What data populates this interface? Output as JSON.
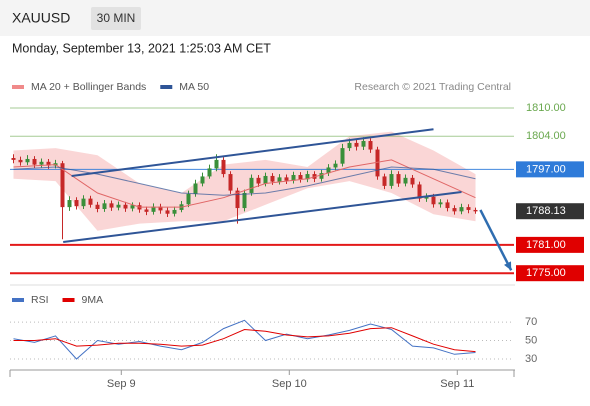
{
  "header": {
    "symbol": "XAUUSD",
    "timeframe": "30 MIN",
    "datetime": "Monday, September 13, 2021 1:25:03 AM CET"
  },
  "chart_data": [
    {
      "type": "candlestick",
      "legend": [
        {
          "name": "MA 20 + Bollinger Bands",
          "color": "#f08a8a"
        },
        {
          "name": "MA 50",
          "color": "#2f5597"
        }
      ],
      "credit": "Research © 2021 Trading Central",
      "ylim": [
        1772.5,
        1812.75
      ],
      "xlim": [
        -0.5,
        71.5
      ],
      "up_color": "#3a8f3a",
      "down_color": "#c62828",
      "candles": [
        [
          1799.4,
          1800.2,
          1798.3,
          1799.0
        ],
        [
          1799.0,
          1799.7,
          1797.8,
          1798.5
        ],
        [
          1798.5,
          1800.0,
          1797.9,
          1799.2
        ],
        [
          1799.2,
          1799.8,
          1797.3,
          1798.0
        ],
        [
          1798.0,
          1799.3,
          1797.4,
          1798.6
        ],
        [
          1798.6,
          1799.2,
          1797.1,
          1797.8
        ],
        [
          1797.8,
          1799.0,
          1797.2,
          1798.3
        ],
        [
          1798.3,
          1798.8,
          1782.2,
          1789.0
        ],
        [
          1789.0,
          1791.3,
          1788.2,
          1790.5
        ],
        [
          1790.5,
          1791.1,
          1788.5,
          1789.2
        ],
        [
          1789.2,
          1791.5,
          1788.6,
          1790.8
        ],
        [
          1790.8,
          1791.4,
          1788.9,
          1789.5
        ],
        [
          1789.5,
          1790.1,
          1787.9,
          1788.6
        ],
        [
          1788.6,
          1790.5,
          1788.0,
          1789.8
        ],
        [
          1789.8,
          1790.4,
          1788.2,
          1788.9
        ],
        [
          1788.9,
          1790.2,
          1788.3,
          1789.5
        ],
        [
          1789.5,
          1790.1,
          1788.0,
          1788.7
        ],
        [
          1788.7,
          1790.0,
          1788.1,
          1789.4
        ],
        [
          1789.4,
          1790.0,
          1787.8,
          1788.5
        ],
        [
          1788.5,
          1789.1,
          1787.3,
          1788.0
        ],
        [
          1788.0,
          1789.8,
          1787.4,
          1789.1
        ],
        [
          1789.1,
          1789.7,
          1787.6,
          1788.3
        ],
        [
          1788.3,
          1788.9,
          1786.9,
          1787.6
        ],
        [
          1787.6,
          1789.1,
          1787.0,
          1788.4
        ],
        [
          1788.4,
          1790.3,
          1787.9,
          1789.6
        ],
        [
          1789.6,
          1792.5,
          1789.0,
          1791.8
        ],
        [
          1791.8,
          1794.8,
          1791.2,
          1794.0
        ],
        [
          1794.0,
          1796.3,
          1793.4,
          1795.5
        ],
        [
          1795.5,
          1798.0,
          1795.0,
          1797.2
        ],
        [
          1797.2,
          1800.2,
          1796.6,
          1799.0
        ],
        [
          1799.0,
          1799.6,
          1795.3,
          1796.0
        ],
        [
          1796.0,
          1796.6,
          1791.8,
          1792.5
        ],
        [
          1792.5,
          1793.1,
          1785.5,
          1788.8
        ],
        [
          1788.8,
          1792.7,
          1788.1,
          1792.0
        ],
        [
          1792.0,
          1795.9,
          1791.4,
          1795.2
        ],
        [
          1795.2,
          1795.8,
          1793.3,
          1794.0
        ],
        [
          1794.0,
          1796.3,
          1793.4,
          1795.6
        ],
        [
          1795.6,
          1796.2,
          1793.7,
          1794.4
        ],
        [
          1794.4,
          1796.0,
          1793.8,
          1795.3
        ],
        [
          1795.3,
          1795.9,
          1793.9,
          1794.6
        ],
        [
          1794.6,
          1796.5,
          1794.0,
          1795.8
        ],
        [
          1795.8,
          1796.4,
          1794.2,
          1794.9
        ],
        [
          1794.9,
          1796.7,
          1794.3,
          1796.0
        ],
        [
          1796.0,
          1796.6,
          1794.3,
          1795.0
        ],
        [
          1795.0,
          1796.9,
          1794.4,
          1796.2
        ],
        [
          1796.2,
          1798.1,
          1795.6,
          1797.4
        ],
        [
          1797.4,
          1798.9,
          1796.8,
          1798.2
        ],
        [
          1798.2,
          1802.4,
          1797.6,
          1801.5
        ],
        [
          1801.5,
          1803.5,
          1800.9,
          1802.6
        ],
        [
          1802.6,
          1803.3,
          1801.0,
          1801.8
        ],
        [
          1801.8,
          1803.8,
          1801.1,
          1803.0
        ],
        [
          1803.0,
          1803.6,
          1800.5,
          1801.2
        ],
        [
          1801.2,
          1801.8,
          1794.8,
          1795.5
        ],
        [
          1795.5,
          1796.1,
          1792.8,
          1793.5
        ],
        [
          1793.5,
          1796.8,
          1792.9,
          1796.0
        ],
        [
          1796.0,
          1796.6,
          1793.3,
          1794.0
        ],
        [
          1794.0,
          1795.9,
          1793.4,
          1795.2
        ],
        [
          1795.2,
          1795.8,
          1793.1,
          1793.8
        ],
        [
          1793.8,
          1794.4,
          1790.1,
          1790.8
        ],
        [
          1790.8,
          1791.9,
          1790.1,
          1791.2
        ],
        [
          1791.2,
          1791.8,
          1788.9,
          1789.6
        ],
        [
          1789.6,
          1790.7,
          1788.9,
          1790.0
        ],
        [
          1790.0,
          1790.6,
          1788.1,
          1788.8
        ],
        [
          1788.8,
          1789.4,
          1787.4,
          1788.1
        ],
        [
          1788.1,
          1789.7,
          1787.5,
          1789.0
        ],
        [
          1789.0,
          1789.6,
          1787.7,
          1788.4
        ],
        [
          1788.4,
          1788.9,
          1787.6,
          1788.1
        ]
      ],
      "indicators": {
        "x": [
          0,
          6,
          12,
          18,
          24,
          30,
          36,
          42,
          48,
          54,
          60,
          66
        ],
        "ma20": [
          1797.5,
          1798,
          1792,
          1789,
          1789,
          1791,
          1794,
          1795,
          1797.5,
          1799,
          1795,
          1791
        ],
        "ma50": [
          1797,
          1797.5,
          1796,
          1794,
          1792,
          1791.5,
          1792,
          1793.5,
          1795.5,
          1797.5,
          1797,
          1795
        ],
        "upper": [
          1801,
          1801.5,
          1800,
          1794,
          1792,
          1798,
          1799,
          1797.5,
          1804,
          1805,
          1801,
          1796
        ],
        "lower": [
          1795,
          1794.5,
          1784,
          1785.5,
          1786,
          1786,
          1789.5,
          1793,
          1794.5,
          1792,
          1787.5,
          1786
        ]
      },
      "trendlines": [
        {
          "from": [
            8.3,
            1795.6
          ],
          "to": [
            60,
            1805.5
          ],
          "color": "#2f5597"
        },
        {
          "from": [
            7.1,
            1781.6
          ],
          "to": [
            64,
            1792.2
          ],
          "color": "#2f5597"
        }
      ],
      "arrow": {
        "from": [
          66.7,
          1788.4
        ],
        "to": [
          71.1,
          1775.6
        ],
        "color": "#2f6db0"
      },
      "levels": [
        {
          "value": 1810,
          "label": "1810.00",
          "color": "#6aa84f",
          "style": "text",
          "line": true
        },
        {
          "value": 1804,
          "label": "1804.00",
          "color": "#6aa84f",
          "style": "text",
          "line": true
        },
        {
          "value": 1797,
          "label": "1797.00",
          "color": "#2f7bd9",
          "style": "box",
          "line": true
        },
        {
          "value": 1788.13,
          "label": "1788.13",
          "color": "#333333",
          "style": "box",
          "line": false
        },
        {
          "value": 1781,
          "label": "1781.00",
          "color": "#e00000",
          "style": "box",
          "line": true
        },
        {
          "value": 1775,
          "label": "1775.00",
          "color": "#e00000",
          "style": "box",
          "line": true
        }
      ]
    },
    {
      "type": "line",
      "legend": [
        {
          "name": "RSI",
          "color": "#4472c4"
        },
        {
          "name": "9MA",
          "color": "#e00000"
        }
      ],
      "x": [
        0,
        3,
        6,
        9,
        12,
        15,
        18,
        21,
        24,
        27,
        30,
        33,
        36,
        39,
        42,
        45,
        48,
        51,
        54,
        57,
        60,
        63,
        66
      ],
      "series": [
        {
          "name": "RSI",
          "color": "#4472c4",
          "values": [
            52,
            48,
            55,
            30,
            50,
            46,
            49,
            44,
            40,
            48,
            63,
            72,
            50,
            57,
            52,
            56,
            61,
            68,
            62,
            44,
            42,
            35,
            37
          ]
        },
        {
          "name": "9MA",
          "color": "#e00000",
          "values": [
            50,
            50,
            52,
            44,
            45,
            47,
            47,
            46,
            44,
            45,
            52,
            62,
            60,
            56,
            54,
            55,
            58,
            63,
            64,
            55,
            46,
            40,
            38
          ]
        }
      ],
      "ylim": [
        18,
        81
      ],
      "yticks": [
        30,
        50,
        70
      ],
      "xlim": [
        -0.5,
        71.5
      ],
      "xticks": [
        {
          "value": 15.4,
          "label": "Sep 9"
        },
        {
          "value": 39.4,
          "label": "Sep 10"
        },
        {
          "value": 63.4,
          "label": "Sep 11"
        }
      ]
    }
  ]
}
